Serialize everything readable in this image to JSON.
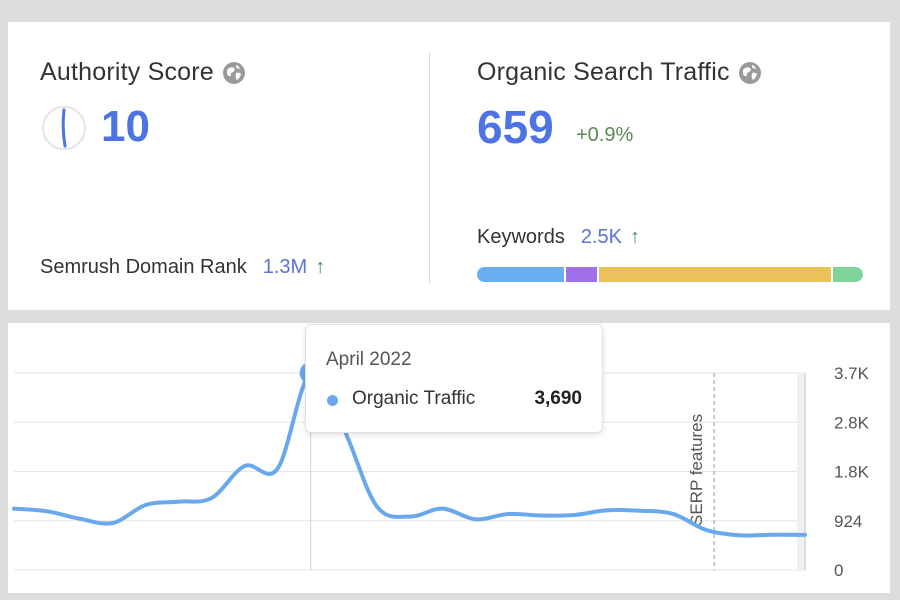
{
  "authority": {
    "title": "Authority Score",
    "value": "10",
    "title_icon": "globe-icon",
    "gauge_icon": "gauge-icon",
    "gauge_fraction": 0.1
  },
  "organic": {
    "title": "Organic Search Traffic",
    "title_icon": "globe-icon",
    "value": "659",
    "change": "+0.9%"
  },
  "domain_rank": {
    "label": "Semrush Domain Rank",
    "value": "1.3M",
    "arrow": "↑"
  },
  "keywords": {
    "label": "Keywords",
    "value": "2.5K",
    "arrow": "↑",
    "bar_segments": [
      {
        "color": "#6aaef2",
        "fraction": 0.23
      },
      {
        "color": "#a070ea",
        "fraction": 0.08
      },
      {
        "color": "#ecc05b",
        "fraction": 0.61
      },
      {
        "color": "#7fd49a",
        "fraction": 0.08
      }
    ]
  },
  "colors": {
    "accent": "#4e74e4",
    "line": "#6aa8ee",
    "positive": "#3f8d5d"
  },
  "chart_data": {
    "type": "line",
    "series": [
      {
        "name": "Organic Traffic",
        "values": [
          1150,
          1100,
          960,
          880,
          1220,
          1280,
          1350,
          1950,
          1900,
          3690,
          2650,
          1200,
          1000,
          1150,
          950,
          1050,
          1020,
          1030,
          1120,
          1110,
          1050,
          750,
          650,
          660,
          659
        ]
      }
    ],
    "y_ticks": [
      "3.7K",
      "2.8K",
      "1.8K",
      "924",
      "0"
    ],
    "ylim": [
      0,
      3690
    ],
    "grid": true,
    "annotations": [
      {
        "label": "SERP features",
        "index": 21
      }
    ],
    "tooltip": {
      "date": "April 2022",
      "series": "Organic Traffic",
      "value": "3,690",
      "index": 9
    }
  }
}
